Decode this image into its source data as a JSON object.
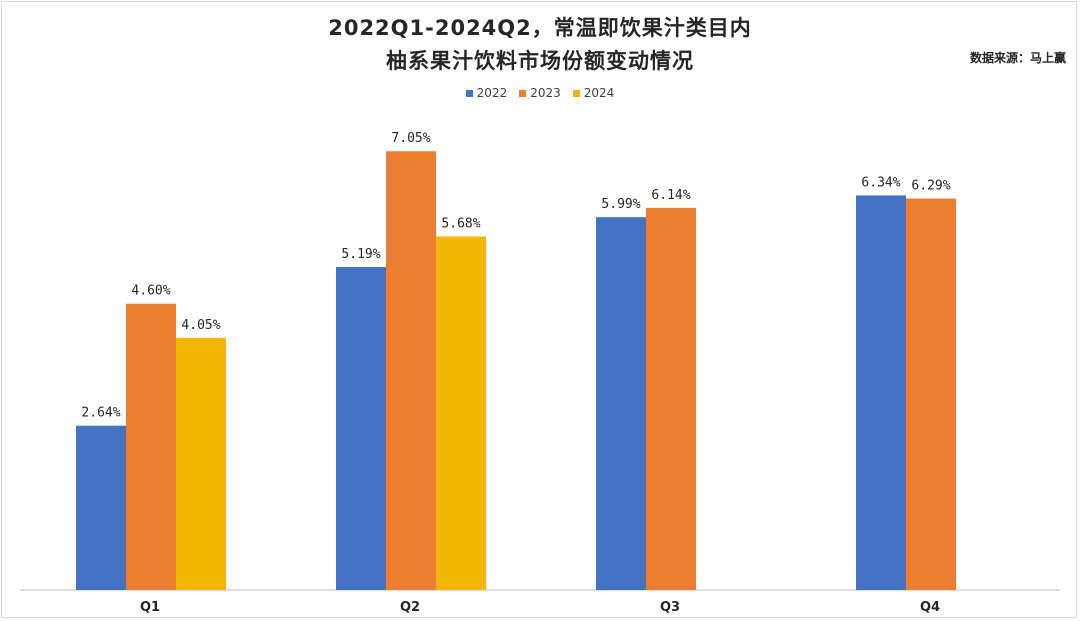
{
  "title_line1": "2022Q1-2024Q2，常温即饮果汁类目内",
  "title_line2": "柚系果汁饮料市场份额变动情况",
  "source": "数据来源：马上赢",
  "colors": {
    "2022": "#4472c4",
    "2023": "#ed7d31",
    "2024": "#f2b705"
  },
  "chart_data": {
    "type": "bar",
    "title": "2022Q1-2024Q2，常温即饮果汁类目内柚系果汁饮料市场份额变动情况",
    "categories": [
      "Q1",
      "Q2",
      "Q3",
      "Q4"
    ],
    "series": [
      {
        "name": "2022",
        "values": [
          2.64,
          5.19,
          5.99,
          6.34
        ],
        "labels": [
          "2.64%",
          "5.19%",
          "5.99%",
          "6.34%"
        ]
      },
      {
        "name": "2023",
        "values": [
          4.6,
          7.05,
          6.14,
          6.29
        ],
        "labels": [
          "4.60%",
          "7.05%",
          "6.14%",
          "6.29%"
        ]
      },
      {
        "name": "2024",
        "values": [
          4.05,
          5.68,
          null,
          null
        ],
        "labels": [
          "4.05%",
          "5.68%",
          null,
          null
        ]
      }
    ],
    "unit": "%",
    "ylim": [
      0,
      7.6
    ],
    "grid": false,
    "legend": "top-center"
  }
}
